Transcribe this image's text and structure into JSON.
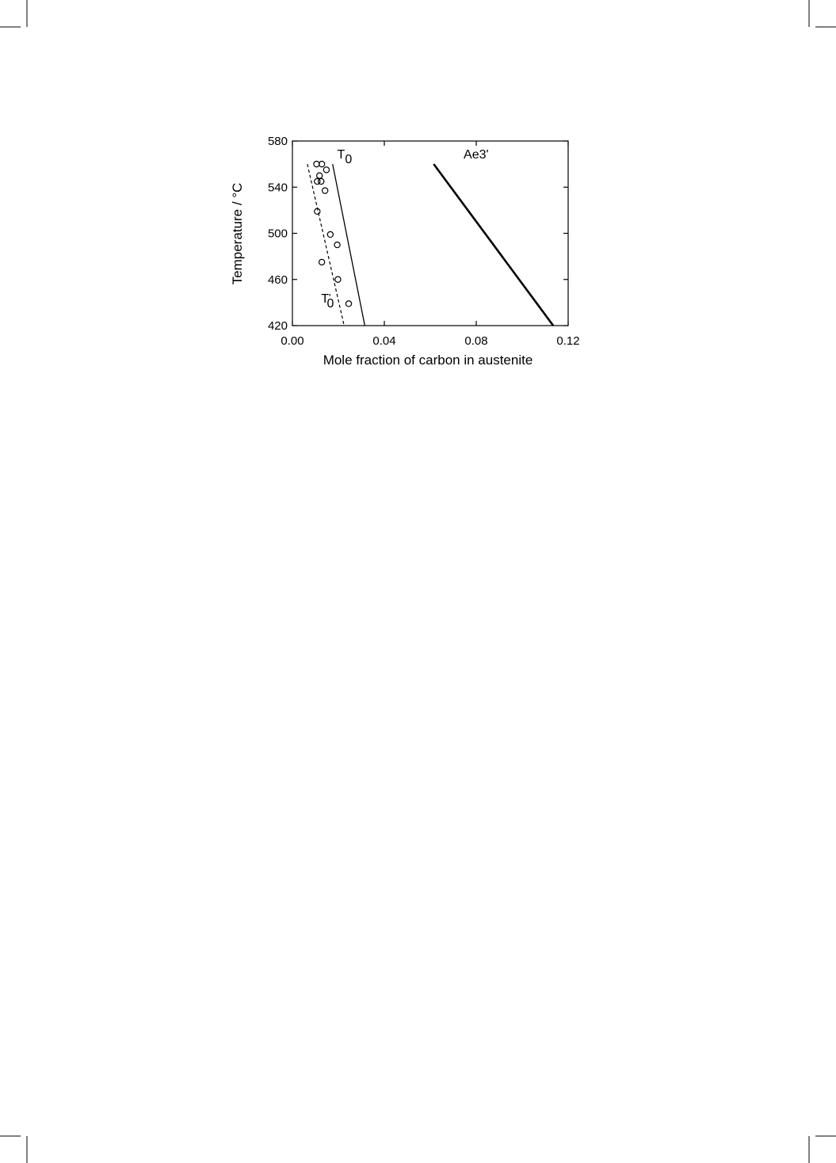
{
  "chart_data": {
    "type": "scatter",
    "title": "",
    "xlabel": "Mole fraction of carbon in austenite",
    "ylabel": "Temperature / °C",
    "xlim": [
      0.0,
      0.12
    ],
    "ylim": [
      420,
      580
    ],
    "x_ticks": [
      "0.00",
      "0.04",
      "0.08",
      "0.12"
    ],
    "y_ticks": [
      "420",
      "460",
      "500",
      "540",
      "580"
    ],
    "grid": false,
    "legend": "none",
    "series": [
      {
        "name": "T0",
        "style": "solid-thin",
        "x": [
          0.0175,
          0.0315
        ],
        "y": [
          560,
          420
        ]
      },
      {
        "name": "T0'",
        "style": "dashed",
        "x": [
          0.0065,
          0.0225
        ],
        "y": [
          560,
          420
        ]
      },
      {
        "name": "Ae3'",
        "style": "solid-thick",
        "x": [
          0.0615,
          0.1135
        ],
        "y": [
          560,
          420
        ]
      },
      {
        "name": "",
        "style": "open-circle",
        "x": [
          0.0105,
          0.0128,
          0.0148,
          0.0118,
          0.0108,
          0.0125,
          0.0142,
          0.0108,
          0.0165,
          0.0195,
          0.0128,
          0.0198,
          0.0245
        ],
        "y": [
          560,
          560,
          555,
          550,
          545,
          545,
          537,
          519,
          499,
          490,
          475,
          460,
          439
        ]
      }
    ],
    "annotations": [
      {
        "text": "T",
        "sub": "0",
        "x": 0.0195,
        "y": 565
      },
      {
        "text": "Ae3'",
        "x": 0.0745,
        "y": 565
      },
      {
        "text": "T",
        "prime": "'",
        "sub": "0",
        "x": 0.0125,
        "y": 440
      }
    ]
  }
}
